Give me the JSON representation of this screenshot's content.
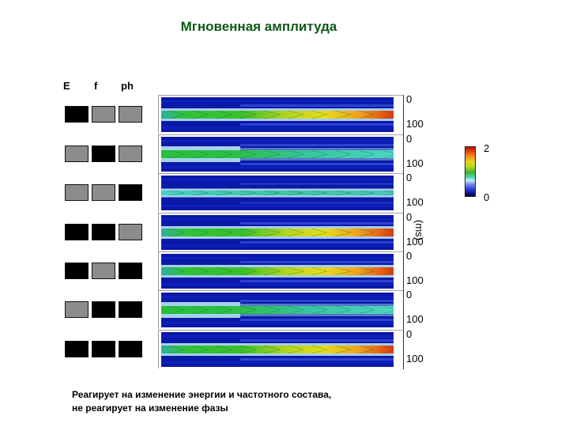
{
  "title": "Мгновенная амплитуда",
  "columns": [
    "E",
    "f",
    "ph"
  ],
  "rows": [
    {
      "E": "black",
      "f": "gray",
      "ph": "gray",
      "intensity": "rising-to-red"
    },
    {
      "E": "gray",
      "f": "black",
      "ph": "gray",
      "intensity": "green-fading"
    },
    {
      "E": "gray",
      "f": "gray",
      "ph": "black",
      "intensity": "cyan-thin"
    },
    {
      "E": "black",
      "f": "black",
      "ph": "gray",
      "intensity": "rising-to-red"
    },
    {
      "E": "black",
      "f": "gray",
      "ph": "black",
      "intensity": "rising-to-red"
    },
    {
      "E": "gray",
      "f": "black",
      "ph": "black",
      "intensity": "green-fading"
    },
    {
      "E": "black",
      "f": "black",
      "ph": "black",
      "intensity": "rising-to-red"
    }
  ],
  "axis": {
    "top_label": "0",
    "bottom_label": "100",
    "unit_label": "(ms)"
  },
  "colorbar": {
    "max": "2",
    "min": "0"
  },
  "caption": {
    "line1": "Реагирует на изменение энергии и частотного состава,",
    "line2": "не реагирует на изменение фазы"
  },
  "colors": {
    "title": "#0d5a16",
    "swatch_black": "#000000",
    "swatch_gray": "#8c8c8c",
    "heat_bg": "#0a19a6"
  }
}
